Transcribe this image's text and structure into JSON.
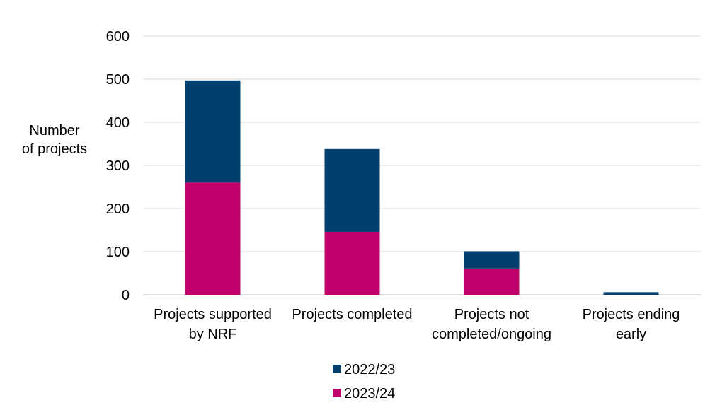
{
  "chart_data": {
    "type": "bar",
    "stacked": true,
    "title": "",
    "ylabel_lines": [
      "Number",
      "of projects"
    ],
    "xlabel": "",
    "ylim": [
      0,
      600
    ],
    "yticks": [
      0,
      100,
      200,
      300,
      400,
      500,
      600
    ],
    "grid": true,
    "legend_position": "bottom",
    "categories": [
      [
        "Projects supported",
        "by NRF"
      ],
      [
        "Projects completed"
      ],
      [
        "Projects not",
        "completed/ongoing"
      ],
      [
        "Projects ending",
        "early"
      ]
    ],
    "series": [
      {
        "name": "2023/24",
        "color": "#c0006b",
        "values": [
          260,
          146,
          61,
          0
        ]
      },
      {
        "name": "2022/23",
        "color": "#003f6e",
        "values": [
          237,
          192,
          40,
          6
        ]
      }
    ],
    "legend_order": [
      "2022/23",
      "2023/24"
    ]
  }
}
